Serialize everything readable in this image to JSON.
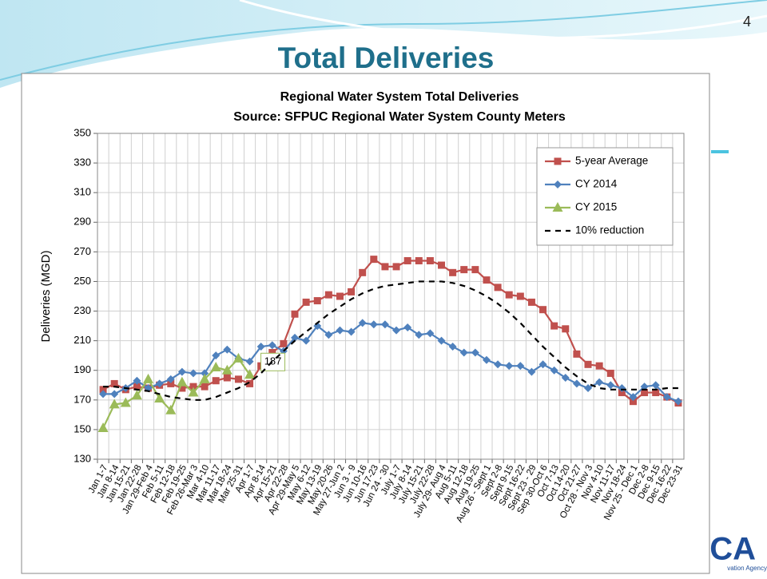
{
  "slide": {
    "title": "Total Deliveries",
    "page_number": "4",
    "logo_text": "CA",
    "logo_subtext": "vation Agency"
  },
  "chart_data": {
    "type": "line",
    "title": "Regional Water System  Total Deliveries",
    "subtitle": "Source:  SFPUC Regional Water System County Meters",
    "y_label": "Deliveries (MGD)",
    "categories": [
      "Jan 1-7",
      "Jan 8-14",
      "Jan 15-21",
      "Jan 22-28",
      "Jan 29-Feb 4",
      "Feb 5-11",
      "Feb 12-18",
      "Feb 19-25",
      "Feb 26-Mar 3",
      "Mar 4-10",
      "Mar 11-17",
      "Mar 18-24",
      "Mar 25-31",
      "Apr 1-7",
      "Apr 8-14",
      "Apr 15-21",
      "Apr 22-28",
      "Apr 29-May 5",
      "May 6-12",
      "May 13-19",
      "May 20-26",
      "May 27-Jun 2",
      "Jun 3 - 9",
      "Jun 10-16",
      "Jun 17-23",
      "Jun 24 - 30",
      "July 1-7",
      "July 8-14",
      "July 15-21",
      "July 22-28",
      "July 29- Aug 4",
      "Aug 5-11",
      "Aug 12-18",
      "Aug 19-25",
      "Aug 26 - Sept 1",
      "Sept 2-8",
      "Sept 9-15",
      "Sept 16-22",
      "Sept 23 - 29",
      "Sep 30-Oct 6",
      "Oct 7-13",
      "Oct 14-20",
      "Oct 21-27",
      "Oct 28 - Nov 3",
      "Nov 4-10",
      "Nov 11-17",
      "Nov 18-24",
      "Nov 25 - Dec 1",
      "Dec 2-8",
      "Dec 9-15",
      "Dec 16-22",
      "Dec 23-31"
    ],
    "series": [
      {
        "name": "5-year Average",
        "color": "#c0504d",
        "marker": "square",
        "values": [
          177,
          181,
          177,
          179,
          178,
          180,
          181,
          178,
          179,
          179,
          183,
          185,
          184,
          181,
          193,
          202,
          208,
          228,
          236,
          237,
          241,
          240,
          243,
          256,
          265,
          260,
          260,
          264,
          264,
          264,
          261,
          256,
          258,
          258,
          251,
          246,
          241,
          240,
          236,
          231,
          220,
          218,
          201,
          194,
          193,
          188,
          175,
          169,
          175,
          175,
          172,
          168
        ]
      },
      {
        "name": "CY 2014",
        "color": "#4f81bd",
        "marker": "diamond",
        "values": [
          174,
          174,
          178,
          183,
          178,
          181,
          184,
          189,
          188,
          188,
          200,
          204,
          198,
          196,
          206,
          207,
          203,
          212,
          210,
          220,
          214,
          217,
          216,
          222,
          221,
          221,
          217,
          219,
          214,
          215,
          210,
          206,
          202,
          202,
          197,
          194,
          193,
          193,
          189,
          194,
          190,
          185,
          181,
          178,
          182,
          180,
          178,
          172,
          179,
          180,
          172,
          169
        ]
      },
      {
        "name": "CY 2015",
        "color": "#9bbb59",
        "marker": "triangle",
        "label_last": true,
        "values": [
          151,
          167,
          168,
          173,
          184,
          171,
          163,
          182,
          175,
          184,
          192,
          190,
          198,
          187,
          null,
          null,
          null,
          null,
          null,
          null,
          null,
          null,
          null,
          null,
          null,
          null,
          null,
          null,
          null,
          null,
          null,
          null,
          null,
          null,
          null,
          null,
          null,
          null,
          null,
          null,
          null,
          null,
          null,
          null,
          null,
          null,
          null,
          null,
          null,
          null,
          null,
          null
        ]
      },
      {
        "name": "10% reduction",
        "color": "#000000",
        "marker": "none",
        "dashed": true,
        "values": [
          179,
          179,
          178,
          177,
          176,
          174,
          172,
          171,
          170,
          170,
          172,
          175,
          178,
          182,
          188,
          196,
          203,
          210,
          216,
          222,
          228,
          233,
          238,
          242,
          245,
          247,
          248,
          249,
          250,
          250,
          250,
          249,
          247,
          244,
          240,
          235,
          229,
          222,
          214,
          206,
          199,
          192,
          186,
          181,
          178,
          177,
          177,
          177,
          177,
          177,
          178,
          178
        ]
      }
    ],
    "ylim": [
      130,
      350
    ],
    "yticks": [
      130,
      150,
      170,
      190,
      210,
      230,
      250,
      270,
      290,
      310,
      330,
      350
    ],
    "grid": true,
    "legend": "upper right"
  }
}
